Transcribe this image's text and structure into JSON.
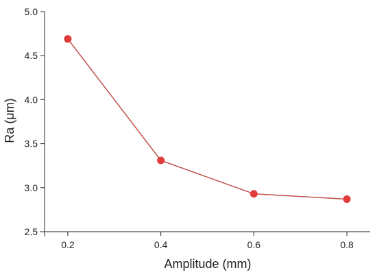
{
  "chart_data": {
    "type": "line",
    "title": "",
    "xlabel": "Amplitude (mm)",
    "ylabel": "Ra (μm)",
    "xlim": [
      0.15,
      0.85
    ],
    "ylim": [
      2.5,
      5.0
    ],
    "x_ticks": [
      0.2,
      0.4,
      0.6,
      0.8
    ],
    "x_tick_labels": [
      "0.2",
      "0.4",
      "0.6",
      "0.8"
    ],
    "y_ticks": [
      2.5,
      3.0,
      3.5,
      4.0,
      4.5,
      5.0
    ],
    "y_tick_labels": [
      "2.5",
      "3.0",
      "3.5",
      "4.0",
      "4.5",
      "5.0"
    ],
    "grid": false,
    "series": [
      {
        "x": [
          0.2,
          0.4,
          0.6,
          0.8
        ],
        "y": [
          4.69,
          3.31,
          2.93,
          2.87
        ],
        "color": "#e03c3c",
        "line_color": "#c0504d"
      }
    ]
  }
}
